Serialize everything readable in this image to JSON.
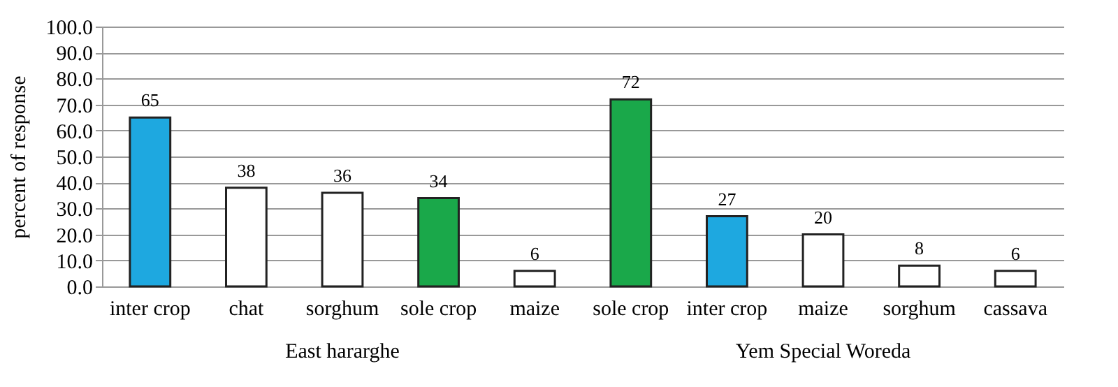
{
  "chart_data": {
    "type": "bar",
    "ylabel": "percent of response",
    "categories": [
      "inter crop",
      "chat",
      "sorghum",
      "sole crop",
      "maize",
      "sole crop",
      "inter crop",
      "maize",
      "sorghum",
      "cassava"
    ],
    "values": [
      65,
      38,
      36,
      34,
      6,
      72,
      27,
      20,
      8,
      6
    ],
    "colors": [
      "#1ea8e0",
      "#ffffff",
      "#ffffff",
      "#1aa84a",
      "#ffffff",
      "#1aa84a",
      "#1ea8e0",
      "#ffffff",
      "#ffffff",
      "#ffffff"
    ],
    "data_labels": true,
    "grid": "y",
    "ylim": [
      0,
      100
    ],
    "yticks": [
      {
        "value": 0,
        "label": "0.0"
      },
      {
        "value": 10,
        "label": "10.0"
      },
      {
        "value": 20,
        "label": "20.0"
      },
      {
        "value": 30,
        "label": "30.0"
      },
      {
        "value": 40,
        "label": "40.0"
      },
      {
        "value": 50,
        "label": "50.0"
      },
      {
        "value": 60,
        "label": "60.0"
      },
      {
        "value": 70,
        "label": "70.0"
      },
      {
        "value": 80,
        "label": "80.0"
      },
      {
        "value": 90,
        "label": "90.0"
      },
      {
        "value": 100,
        "label": "100.0"
      }
    ],
    "annotations": [
      "East hararghe",
      "Yem Special Woreda"
    ]
  }
}
